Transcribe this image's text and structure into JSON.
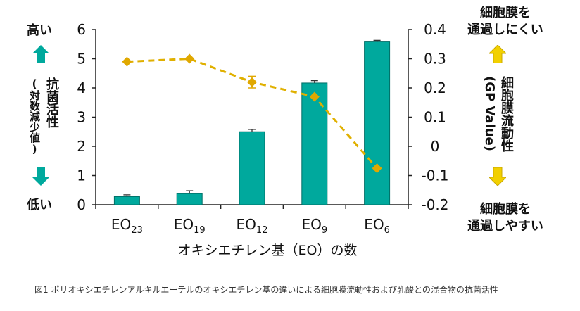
{
  "labels": {
    "left_top": "高い",
    "left_bottom": "低い",
    "left_axis_title_1": "抗菌活性",
    "left_axis_title_2": "(対数減少値)",
    "right_top_1": "細胞膜を",
    "right_top_2": "通過しにくい",
    "right_bottom_1": "細胞膜を",
    "right_bottom_2": "通過しやすい",
    "right_axis_title_1": "細胞膜流動性",
    "right_axis_title_2": "(GP Value)",
    "x_axis_title": "オキシエチレン基（EO）の数",
    "caption": "図1 ポリオキシエチレンアルキルエーテルのオキシエチレン基の違いによる細胞膜流動性および乳酸との混合物の抗菌活性"
  },
  "colors": {
    "bar": "#00A99D",
    "bar_edge": "#006E66",
    "line": "#E0B000",
    "marker": "#E0A800",
    "arrow_left": "#00A99D",
    "arrow_right": "#F2D000"
  },
  "chart_data": {
    "type": "bar+line",
    "categories": [
      {
        "base": "EO",
        "sub": "23"
      },
      {
        "base": "EO",
        "sub": "19"
      },
      {
        "base": "EO",
        "sub": "12"
      },
      {
        "base": "EO",
        "sub": "9"
      },
      {
        "base": "EO",
        "sub": "6"
      }
    ],
    "bars": {
      "axis": "left",
      "values": [
        0.28,
        0.38,
        2.5,
        4.17,
        5.6
      ],
      "errors": [
        0.06,
        0.1,
        0.08,
        0.08,
        0.03
      ]
    },
    "line": {
      "axis": "right",
      "values": [
        0.29,
        0.3,
        0.22,
        0.17,
        -0.075
      ],
      "errors": [
        0,
        0,
        0.02,
        0,
        0
      ]
    },
    "left_axis": {
      "ylim": [
        0,
        6
      ],
      "ticks": [
        "0",
        "1",
        "2",
        "3",
        "4",
        "5",
        "6"
      ]
    },
    "right_axis": {
      "ylim": [
        -0.2,
        0.4
      ],
      "ticks": [
        "-0.2",
        "-0.1",
        "0",
        "0.1",
        "0.2",
        "0.3",
        "0.4"
      ]
    }
  }
}
